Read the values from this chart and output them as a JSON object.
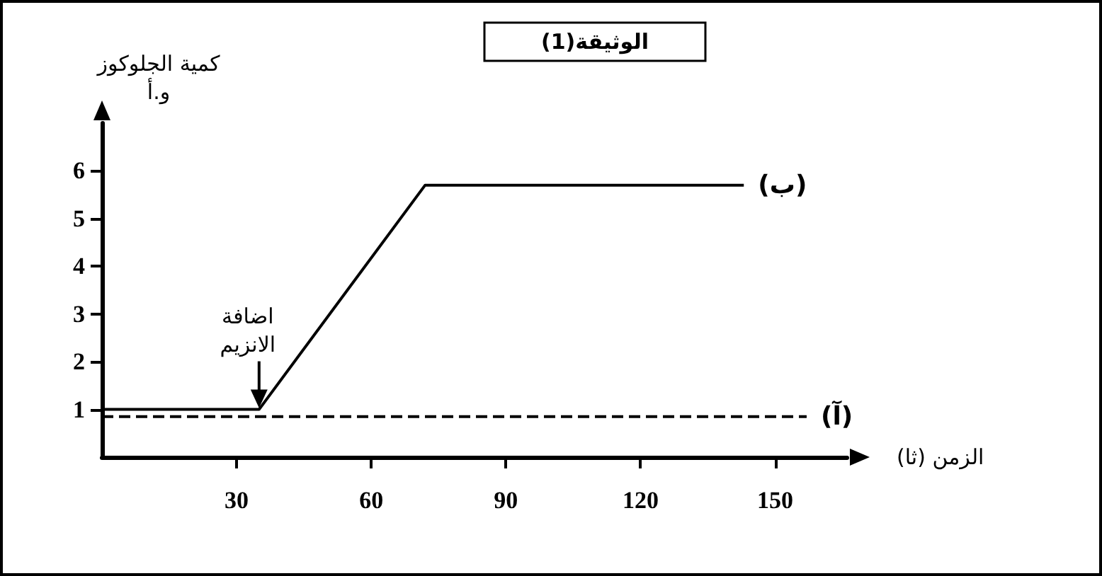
{
  "chart_data": {
    "type": "line",
    "title": "الوثيقة(1)",
    "xlabel": "الزمن (ثا)",
    "ylabel": "كمية الجلوكوز و.أ",
    "xlim": [
      0,
      166
    ],
    "xticks": [
      30,
      60,
      90,
      120,
      150
    ],
    "ylim": [
      0,
      7
    ],
    "yticks": [
      1,
      2,
      3,
      4,
      5,
      6
    ],
    "series": [
      {
        "name": "(ب)",
        "color": "#000000",
        "line_style": "solid",
        "x": [
          0,
          35,
          72,
          143
        ],
        "values": [
          1,
          1,
          5.7,
          5.7
        ]
      },
      {
        "name": "(آ)",
        "color": "#000000",
        "line_style": "dashed",
        "x": [
          0,
          157
        ],
        "values": [
          0.85,
          0.85
        ]
      }
    ],
    "annotations": [
      {
        "text": "اضافة الانزيم",
        "x": 35,
        "y": 1
      }
    ],
    "grid": false,
    "legend": false,
    "marker": "none"
  }
}
